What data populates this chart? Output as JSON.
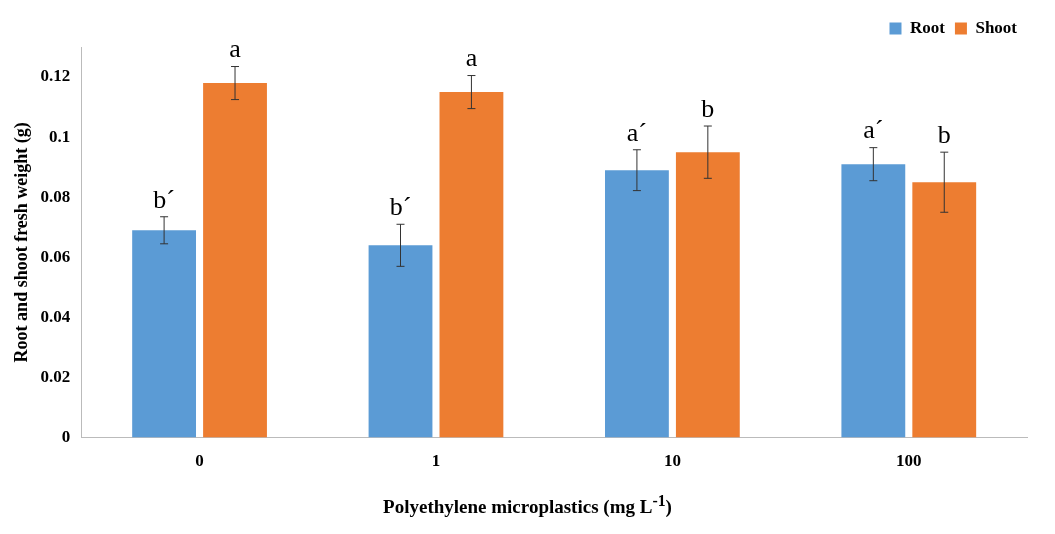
{
  "chart_data": {
    "type": "bar",
    "xlabel": "Polyethylene microplastics (mg L$^{-1}$)",
    "ylabel": "Root and shoot fresh weight (g)",
    "categories": [
      "0",
      "1",
      "10",
      "100"
    ],
    "series": [
      {
        "name": "Root",
        "color": "#5b9bd5",
        "values": [
          0.069,
          0.064,
          0.089,
          0.091
        ],
        "errors": [
          0.0045,
          0.007,
          0.0068,
          0.0055
        ]
      },
      {
        "name": "Shoot",
        "color": "#ed7d31",
        "values": [
          0.118,
          0.115,
          0.095,
          0.085
        ],
        "errors": [
          0.0055,
          0.0055,
          0.0087,
          0.01
        ]
      }
    ],
    "ylim": [
      0,
      0.13
    ],
    "yticks": [
      0,
      0.02,
      0.04,
      0.06,
      0.08,
      0.1,
      0.12
    ],
    "grid": false,
    "legend": "top right",
    "annotations": [
      {
        "text": "b´",
        "x": "0",
        "y": 0.069
      },
      {
        "text": "a",
        "x": "0",
        "y": 0.118
      },
      {
        "text": "b´",
        "x": "1",
        "y": 0.064
      },
      {
        "text": "a",
        "x": "1",
        "y": 0.115
      },
      {
        "text": "a´",
        "x": "10",
        "y": 0.089
      },
      {
        "text": "b",
        "x": "10",
        "y": 0.095
      },
      {
        "text": "a´",
        "x": "100",
        "y": 0.091
      },
      {
        "text": "b",
        "x": "100",
        "y": 0.085
      }
    ]
  }
}
